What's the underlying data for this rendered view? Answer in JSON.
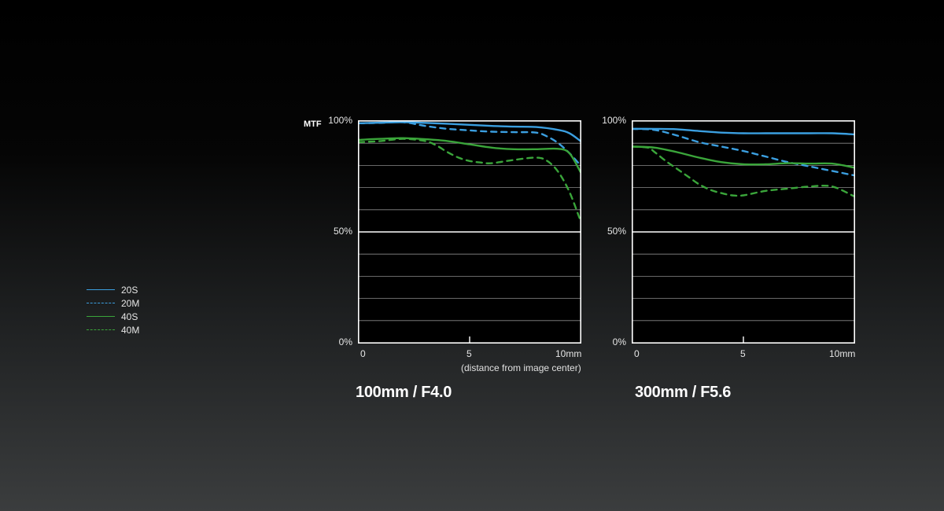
{
  "ylabel": "MTF",
  "legend": [
    {
      "label": "20S",
      "color": "#3b9fe0",
      "dashed": false
    },
    {
      "label": "20M",
      "color": "#3b9fe0",
      "dashed": true
    },
    {
      "label": "40S",
      "color": "#3aa53a",
      "dashed": false
    },
    {
      "label": "40M",
      "color": "#3aa53a",
      "dashed": true
    }
  ],
  "xlabel": "(distance from image center)",
  "chart_data": [
    {
      "type": "line",
      "title": "100mm / F4.0",
      "xlim": [
        0,
        10
      ],
      "ylim": [
        0,
        100
      ],
      "x_ticks": [
        "0",
        "5",
        "10mm"
      ],
      "y_ticks": [
        "0%",
        "50%",
        "100%"
      ],
      "grid": true,
      "series": [
        {
          "name": "20S",
          "x": [
            0,
            1,
            2,
            3,
            4,
            5,
            6,
            7,
            8,
            9,
            9.5,
            10
          ],
          "y": [
            99,
            99.3,
            99.5,
            99.2,
            98.8,
            98.3,
            97.8,
            97.5,
            97.3,
            96,
            94.5,
            91
          ]
        },
        {
          "name": "20M",
          "x": [
            0,
            1,
            2,
            3,
            4,
            5,
            6,
            7,
            8,
            8.5,
            9,
            9.5,
            10
          ],
          "y": [
            99,
            99.2,
            99.5,
            97.8,
            96.5,
            95.8,
            95.2,
            95,
            94.8,
            93,
            90,
            85.5,
            80
          ]
        },
        {
          "name": "40S",
          "x": [
            0,
            1,
            2,
            3,
            4,
            5,
            6,
            7,
            8,
            9,
            9.5,
            10
          ],
          "y": [
            91.5,
            92,
            92.3,
            91.8,
            91,
            89.5,
            88,
            87.3,
            87.3,
            87.5,
            85.5,
            77
          ]
        },
        {
          "name": "40M",
          "x": [
            0,
            1,
            2,
            3,
            3.5,
            4,
            4.5,
            5,
            5.5,
            6,
            7,
            8,
            8.5,
            9,
            9.5,
            10
          ],
          "y": [
            90.5,
            91,
            92,
            91,
            89,
            86,
            83.5,
            82,
            81.3,
            81,
            82.5,
            83.5,
            82,
            77,
            68,
            55
          ]
        }
      ]
    },
    {
      "type": "line",
      "title": "300mm / F5.6",
      "xlim": [
        0,
        10
      ],
      "ylim": [
        0,
        100
      ],
      "x_ticks": [
        "0",
        "5",
        "10mm"
      ],
      "y_ticks": [
        "0%",
        "50%",
        "100%"
      ],
      "grid": true,
      "series": [
        {
          "name": "20S",
          "x": [
            0,
            1,
            2,
            3,
            4,
            5,
            6,
            7,
            8,
            9,
            10
          ],
          "y": [
            96.5,
            96.5,
            96.3,
            95.5,
            94.8,
            94.5,
            94.5,
            94.5,
            94.5,
            94.5,
            94
          ]
        },
        {
          "name": "20M",
          "x": [
            0,
            1,
            2,
            3,
            4,
            5,
            6,
            7,
            8,
            9,
            10
          ],
          "y": [
            96.5,
            96,
            93.5,
            90.5,
            88.5,
            86.5,
            84,
            81.5,
            79.5,
            77.5,
            75.5
          ]
        },
        {
          "name": "40S",
          "x": [
            0,
            1,
            2,
            3,
            4,
            5,
            6,
            7,
            8,
            9,
            10
          ],
          "y": [
            88.5,
            88,
            86,
            83.5,
            81.5,
            80.5,
            80.5,
            81,
            80.8,
            80.8,
            79
          ]
        },
        {
          "name": "40M",
          "x": [
            0,
            0.7,
            1,
            1.5,
            2,
            2.5,
            3,
            3.5,
            4,
            4.5,
            5,
            6,
            7,
            8,
            9,
            10
          ],
          "y": [
            88.5,
            88,
            86,
            82,
            78.5,
            75,
            71.5,
            69,
            67.5,
            66.5,
            66.5,
            68.5,
            69.5,
            70.5,
            70.5,
            66
          ]
        }
      ]
    }
  ]
}
